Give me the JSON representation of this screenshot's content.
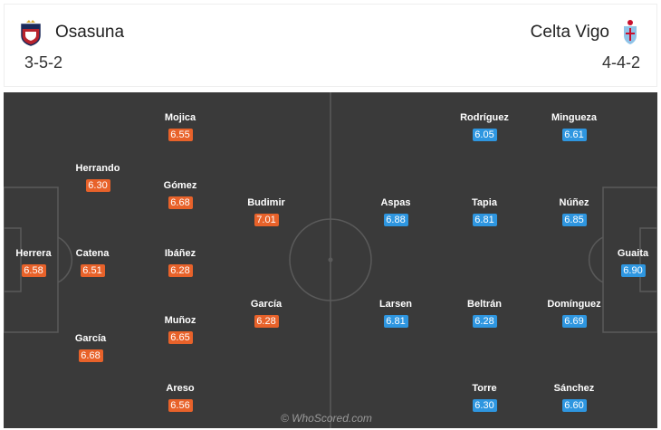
{
  "home": {
    "name": "Osasuna",
    "formation": "3-5-2",
    "crest_icon": "osasuna-crest-icon",
    "colors": {
      "crest_primary": "#b8232d",
      "crest_secondary": "#1b2a5a",
      "rating": "#e8622a"
    },
    "players": [
      {
        "name": "Herrera",
        "rating": "6.58"
      },
      {
        "name": "Herrando",
        "rating": "6.30"
      },
      {
        "name": "Catena",
        "rating": "6.51"
      },
      {
        "name": "García",
        "rating": "6.68"
      },
      {
        "name": "Mojica",
        "rating": "6.55"
      },
      {
        "name": "Gómez",
        "rating": "6.68"
      },
      {
        "name": "Ibáñez",
        "rating": "6.28"
      },
      {
        "name": "Muñoz",
        "rating": "6.65"
      },
      {
        "name": "Areso",
        "rating": "6.56"
      },
      {
        "name": "Budimir",
        "rating": "7.01"
      },
      {
        "name": "García",
        "rating": "6.28"
      }
    ]
  },
  "away": {
    "name": "Celta Vigo",
    "formation": "4-4-2",
    "crest_icon": "celta-vigo-crest-icon",
    "colors": {
      "crest_primary": "#8fc3e8",
      "crest_secondary": "#c8102e",
      "rating": "#2e96e0"
    },
    "players": [
      {
        "name": "Aspas",
        "rating": "6.88"
      },
      {
        "name": "Larsen",
        "rating": "6.81"
      },
      {
        "name": "Rodríguez",
        "rating": "6.05"
      },
      {
        "name": "Tapia",
        "rating": "6.81"
      },
      {
        "name": "Beltrán",
        "rating": "6.28"
      },
      {
        "name": "Torre",
        "rating": "6.30"
      },
      {
        "name": "Mingueza",
        "rating": "6.61"
      },
      {
        "name": "Núñez",
        "rating": "6.85"
      },
      {
        "name": "Domínguez",
        "rating": "6.69"
      },
      {
        "name": "Sánchez",
        "rating": "6.60"
      },
      {
        "name": "Guaita",
        "rating": "6.90"
      }
    ]
  },
  "pitch": {
    "background": "#3a3a3a",
    "line_color": "#5a5a5a"
  },
  "watermark": "© WhoScored.com"
}
